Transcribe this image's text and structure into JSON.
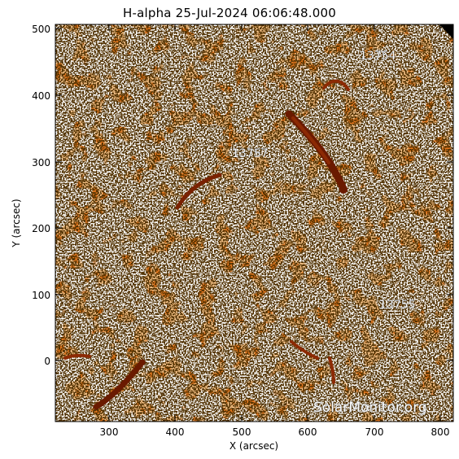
{
  "title": "H-alpha 25-Jul-2024 06:06:48.000",
  "axes": {
    "xlabel": "X (arcsec)",
    "ylabel": "Y (arcsec)",
    "x_ticks": [
      "300",
      "400",
      "500",
      "600",
      "700",
      "800"
    ],
    "y_ticks": [
      "500",
      "400",
      "300",
      "200",
      "100",
      "0"
    ]
  },
  "regions": [
    {
      "id": "13754",
      "label": "13754"
    },
    {
      "id": "13757",
      "label": "13757"
    },
    {
      "id": "13755",
      "label": "13755"
    }
  ],
  "watermark": "SolarMonitor.org",
  "colors": {
    "base": "#e2761e",
    "bright": "#ffffff",
    "dark": "#6a1a00",
    "speckle": "#1a0800"
  }
}
